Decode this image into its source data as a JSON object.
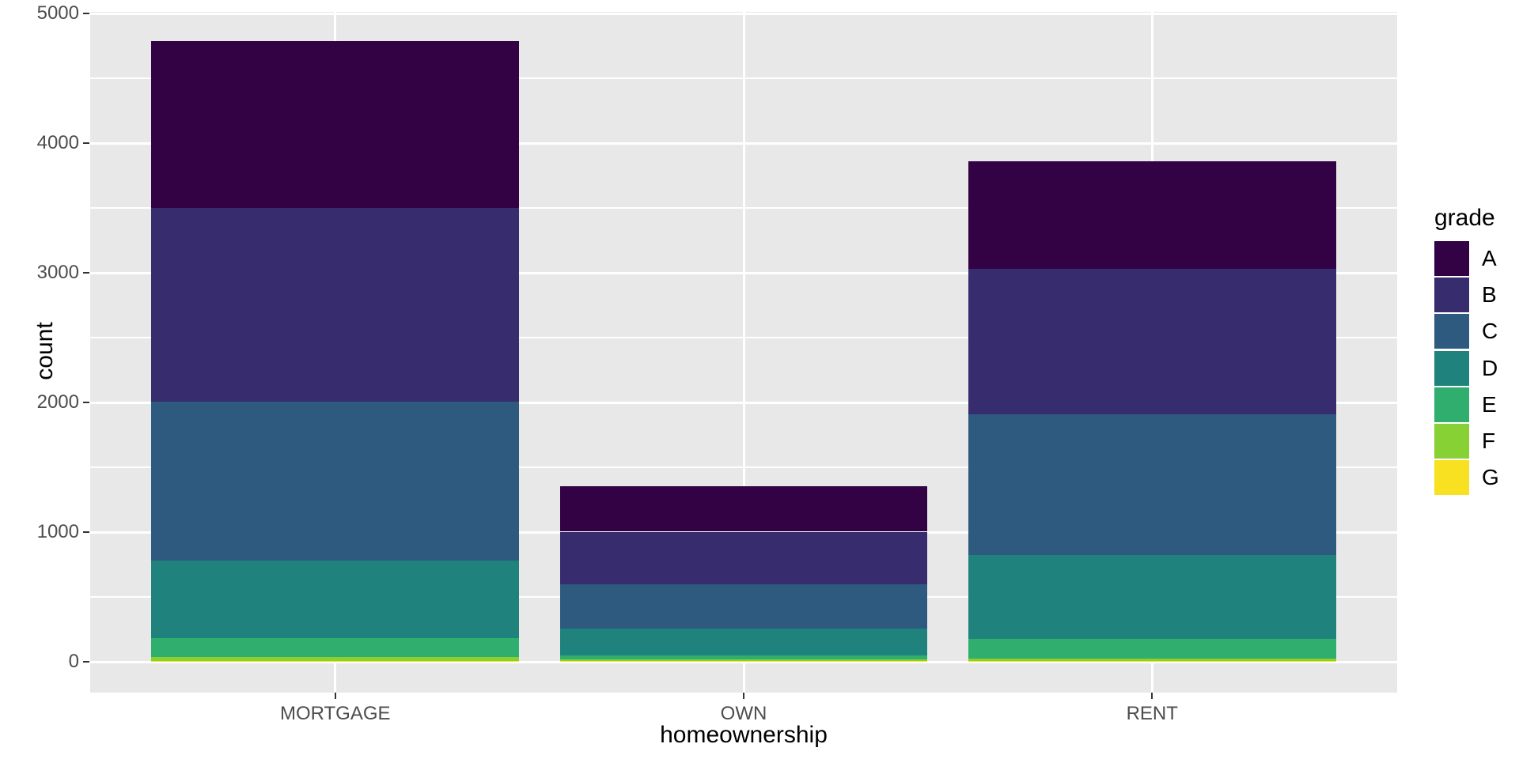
{
  "chart_data": {
    "type": "bar",
    "stacked": true,
    "title": "",
    "xlabel": "homeownership",
    "ylabel": "count",
    "categories": [
      "MORTGAGE",
      "OWN",
      "RENT"
    ],
    "series": [
      {
        "name": "A",
        "color": "#330245",
        "values": [
          1290,
          350,
          828
        ]
      },
      {
        "name": "B",
        "color": "#362C6E",
        "values": [
          1495,
          405,
          1120
        ]
      },
      {
        "name": "C",
        "color": "#2D5A7E",
        "values": [
          1225,
          342,
          1087
        ]
      },
      {
        "name": "D",
        "color": "#1F827D",
        "values": [
          595,
          207,
          646
        ]
      },
      {
        "name": "E",
        "color": "#2FAE6E",
        "values": [
          150,
          31,
          151
        ]
      },
      {
        "name": "F",
        "color": "#87D134",
        "values": [
          25,
          9,
          18
        ]
      },
      {
        "name": "G",
        "color": "#F8E120",
        "values": [
          9,
          9,
          8
        ]
      }
    ],
    "totals": [
      4789,
      1353,
      3858
    ],
    "legend_title": "grade",
    "legend_position": "right",
    "y_ticks": [
      0,
      1000,
      2000,
      3000,
      4000,
      5000
    ],
    "y_minor_ticks": [
      500,
      1500,
      2500,
      3500,
      4500
    ],
    "ylim": [
      -239,
      5012
    ],
    "grid": true,
    "panel_bg": "#E8E8E8",
    "grid_color": "#FFFFFF",
    "axis_text_color": "#4D4D4D",
    "axis_title_color": "#000000",
    "tick_color": "#333333"
  }
}
